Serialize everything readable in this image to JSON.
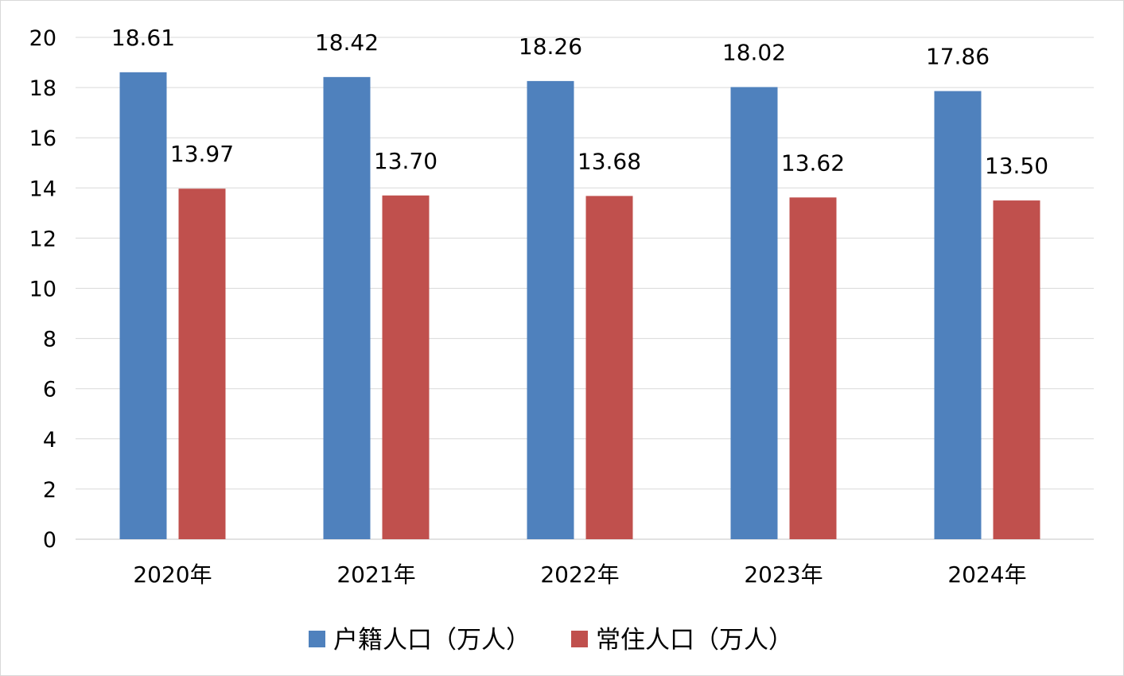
{
  "chart_data": {
    "type": "bar",
    "categories": [
      "2020年",
      "2021年",
      "2022年",
      "2023年",
      "2024年"
    ],
    "series": [
      {
        "name": "户籍人口（万人）",
        "values": [
          18.61,
          18.42,
          18.26,
          18.02,
          17.86
        ],
        "color": "#4f81bd"
      },
      {
        "name": "常住人口（万人）",
        "values": [
          13.97,
          13.7,
          13.68,
          13.62,
          13.5
        ],
        "color": "#c0504d"
      }
    ],
    "data_labels": [
      [
        "18.61",
        "18.42",
        "18.26",
        "18.02",
        "17.86"
      ],
      [
        "13.97",
        "13.70",
        "13.68",
        "13.62",
        "13.50"
      ]
    ],
    "yticks": [
      "0",
      "2",
      "4",
      "6",
      "8",
      "10",
      "12",
      "14",
      "16",
      "18",
      "20"
    ],
    "ylim": [
      0,
      20
    ],
    "grid": true,
    "legend_position": "bottom",
    "gridline_color": "#d9d9d9"
  }
}
